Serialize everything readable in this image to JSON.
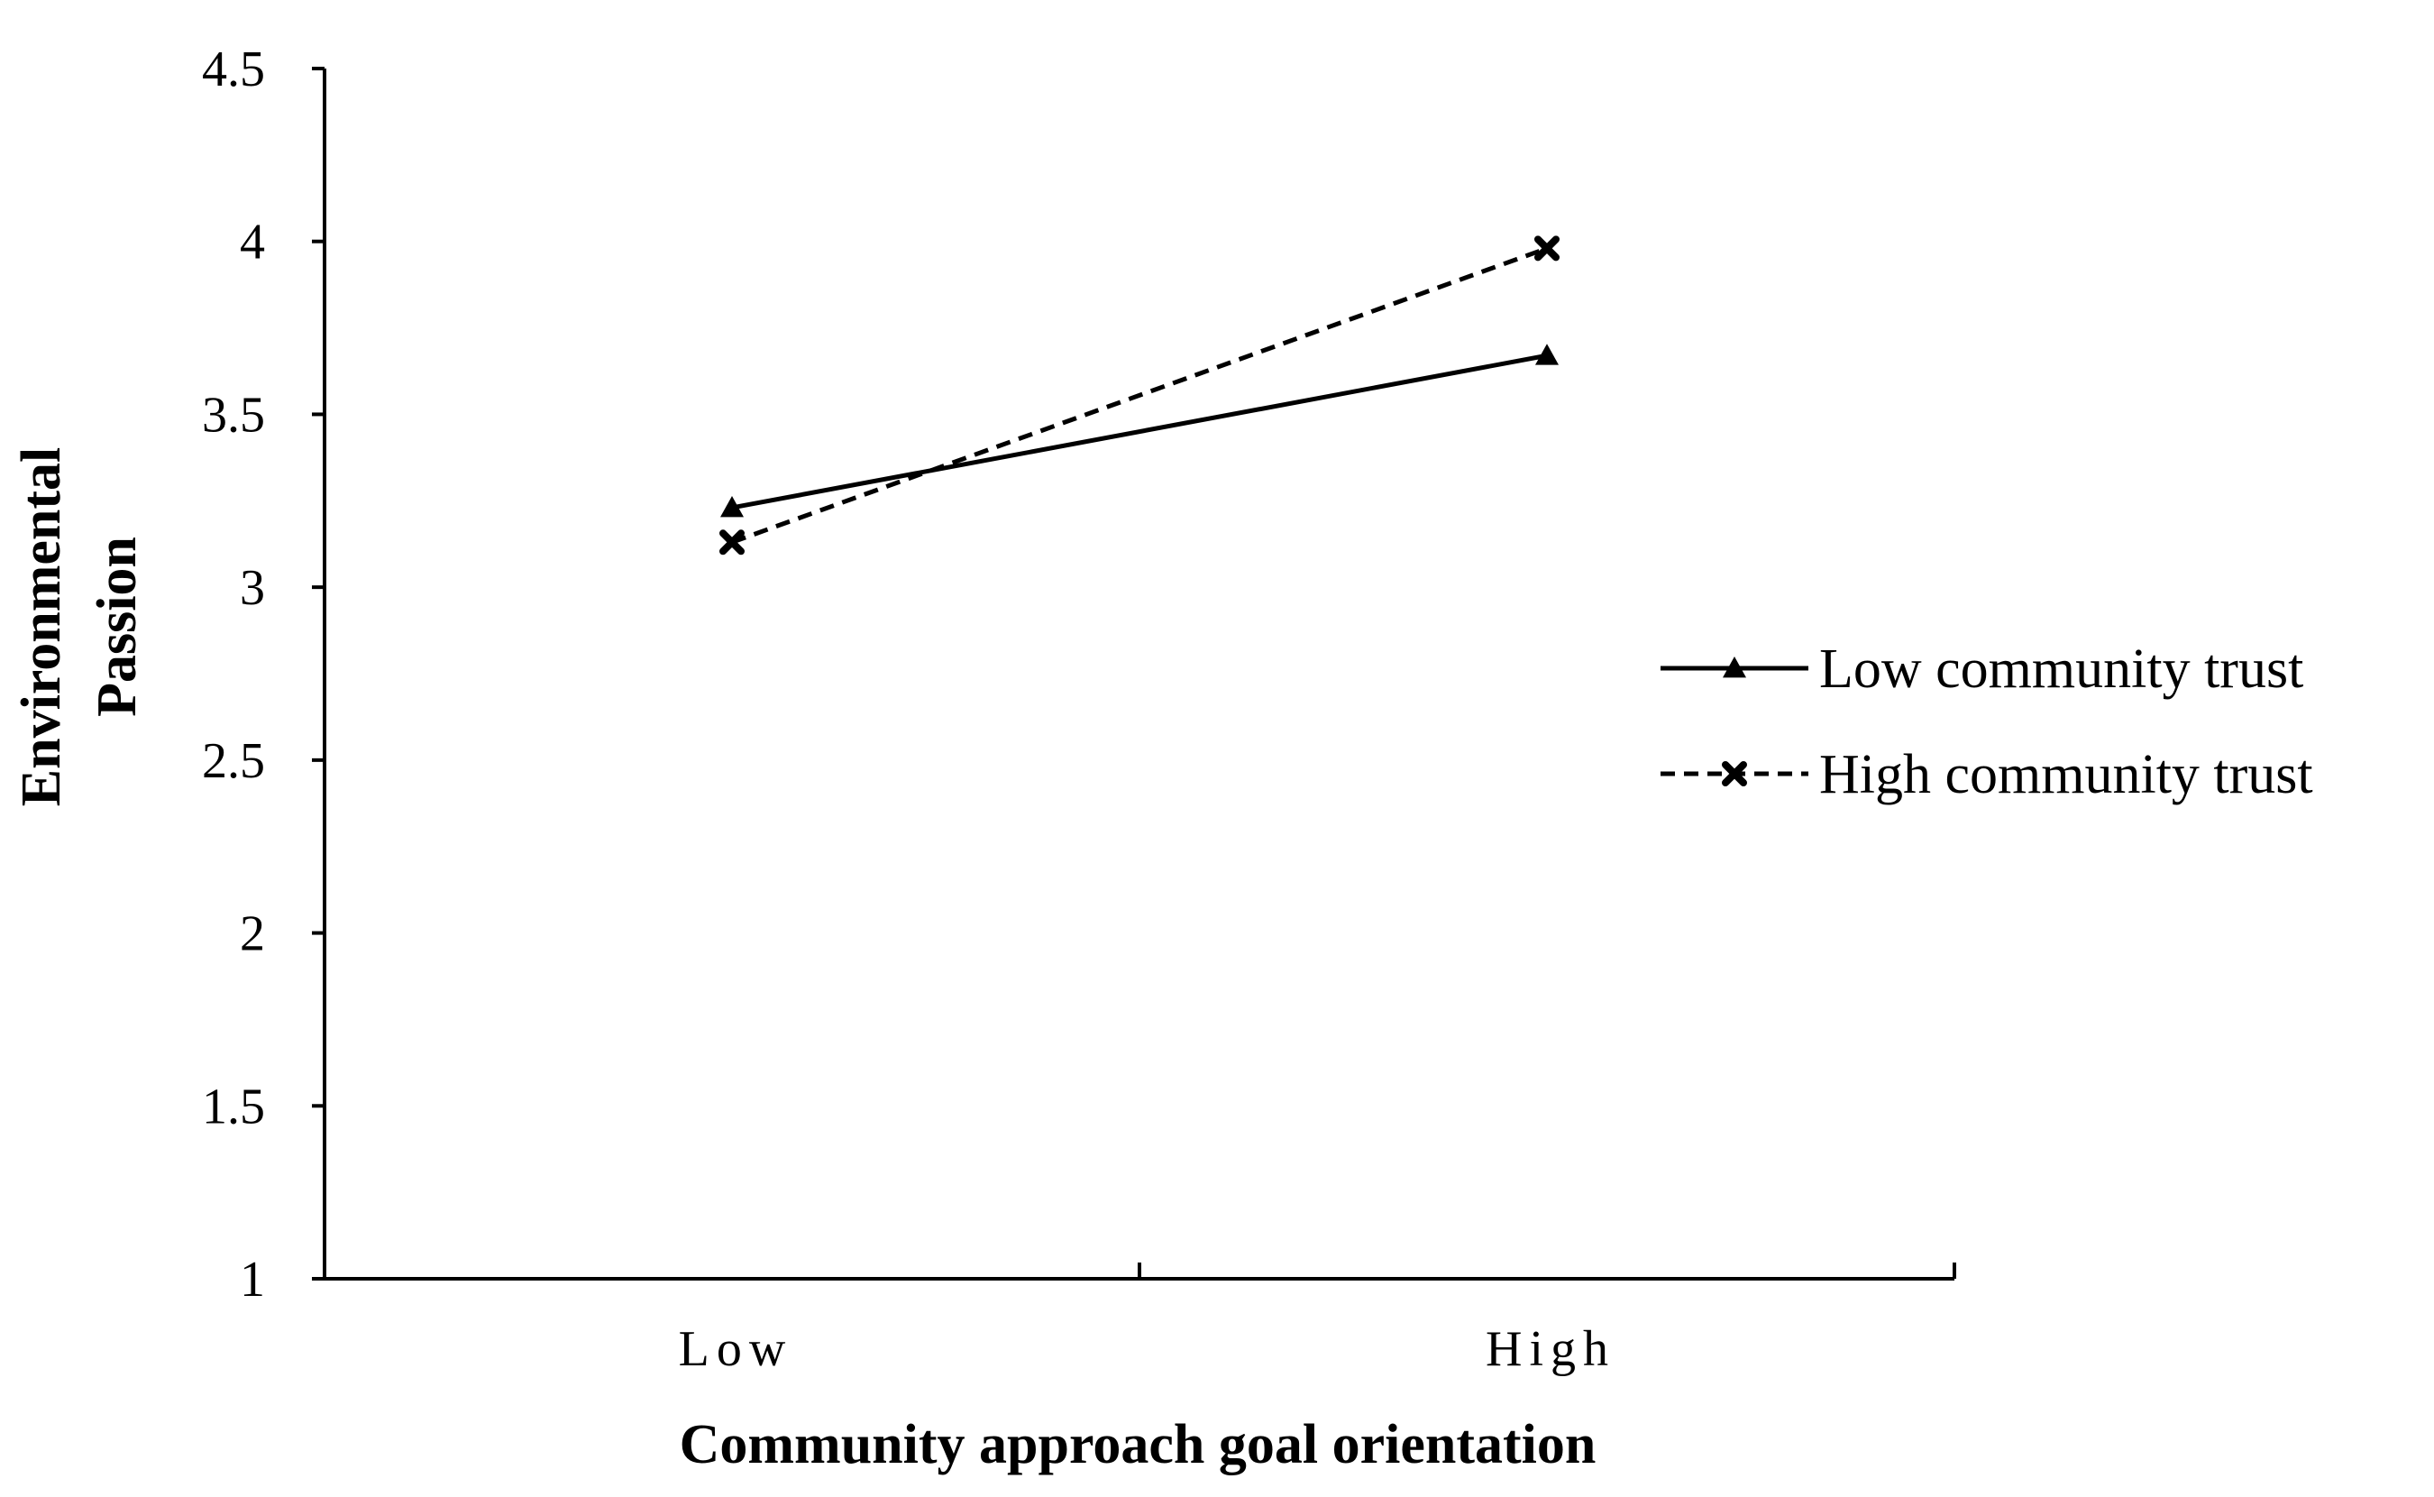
{
  "chart_data": {
    "type": "line",
    "title": "",
    "xlabel": "Community approach goal orientation",
    "ylabel": "Environmental Passion",
    "ylabel_lines": [
      "Environmental",
      "Passion"
    ],
    "categories": [
      "Low",
      "High"
    ],
    "ylim": [
      1,
      4.5
    ],
    "yticks": [
      1,
      1.5,
      2,
      2.5,
      3,
      3.5,
      4,
      4.5
    ],
    "ytick_labels": [
      "1",
      "1.5",
      "2",
      "2.5",
      "3",
      "3.5",
      "4",
      "4.5"
    ],
    "grid": false,
    "legend_position": "right",
    "series": [
      {
        "name": "Low community trust",
        "values": [
          3.23,
          3.67
        ],
        "line_style": "solid",
        "marker": "triangle",
        "color": "#000000"
      },
      {
        "name": "High community trust",
        "values": [
          3.13,
          3.98
        ],
        "line_style": "dashed",
        "marker": "x",
        "color": "#000000"
      }
    ]
  }
}
